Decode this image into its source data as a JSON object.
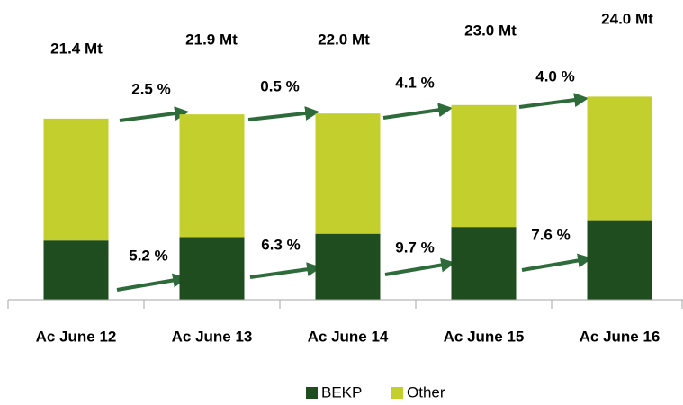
{
  "chart_data": {
    "type": "stacked_bar",
    "categories": [
      "Ac June 12",
      "Ac June 13",
      "Ac June 14",
      "Ac June 15",
      "Ac June 16"
    ],
    "series": [
      {
        "name": "BEKP",
        "color": "#1f4d1f",
        "values": [
          7.0,
          7.4,
          7.8,
          8.6,
          9.3
        ]
      },
      {
        "name": "Other",
        "color": "#c2cf2c",
        "values": [
          14.4,
          14.5,
          14.2,
          14.4,
          14.7
        ]
      }
    ],
    "totals": [
      21.4,
      21.9,
      22.0,
      23.0,
      24.0
    ],
    "total_labels": [
      "21.4 Mt",
      "21.9 Mt",
      "22.0 Mt",
      "23.0 Mt",
      "24.0 Mt"
    ],
    "total_growth_labels": [
      "2.5 %",
      "0.5 %",
      "4.1 %",
      "4.0 %"
    ],
    "bekp_growth_labels": [
      "5.2 %",
      "6.3 %",
      "9.7 %",
      "7.6 %"
    ],
    "ylim": [
      0,
      25
    ],
    "legend": "bottom"
  }
}
